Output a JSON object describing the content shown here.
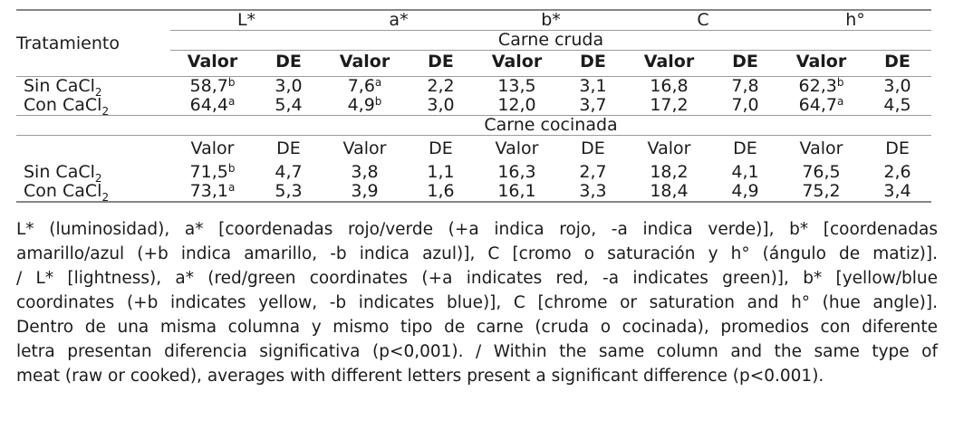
{
  "table": {
    "row_header": "Tratamiento",
    "col_groups": [
      "L*",
      "a*",
      "b*",
      "C",
      "h°"
    ],
    "value_header": "Valor",
    "sd_header": "DE",
    "sections": [
      {
        "title": "Carne cruda",
        "subheader_bold": true,
        "rows": [
          {
            "label": "Sin CaCl",
            "label_sub": "2",
            "cells": [
              {
                "v": "58,7",
                "sup": "b"
              },
              {
                "v": "3,0"
              },
              {
                "v": "7,6",
                "sup": "a"
              },
              {
                "v": "2,2"
              },
              {
                "v": "13,5"
              },
              {
                "v": "3,1"
              },
              {
                "v": "16,8"
              },
              {
                "v": "7,8"
              },
              {
                "v": "62,3",
                "sup": "b"
              },
              {
                "v": "3,0"
              }
            ]
          },
          {
            "label": "Con CaCl",
            "label_sub": "2",
            "cells": [
              {
                "v": "64,4",
                "sup": "a"
              },
              {
                "v": "5,4"
              },
              {
                "v": "4,9",
                "sup": "b"
              },
              {
                "v": "3,0"
              },
              {
                "v": "12,0"
              },
              {
                "v": "3,7"
              },
              {
                "v": "17,2"
              },
              {
                "v": "7,0"
              },
              {
                "v": "64,7",
                "sup": "a"
              },
              {
                "v": "4,5"
              }
            ]
          }
        ]
      },
      {
        "title": "Carne cocinada",
        "subheader_bold": false,
        "rows": [
          {
            "label": "Sin CaCl",
            "label_sub": "2",
            "cells": [
              {
                "v": "71,5",
                "sup": "b"
              },
              {
                "v": "4,7"
              },
              {
                "v": "3,8"
              },
              {
                "v": "1,1"
              },
              {
                "v": "16,3"
              },
              {
                "v": "2,7"
              },
              {
                "v": "18,2"
              },
              {
                "v": "4,1"
              },
              {
                "v": "76,5"
              },
              {
                "v": "2,6"
              }
            ]
          },
          {
            "label": "Con CaCl",
            "label_sub": "2",
            "cells": [
              {
                "v": "73,1",
                "sup": "a"
              },
              {
                "v": "5,3"
              },
              {
                "v": "3,9"
              },
              {
                "v": "1,6"
              },
              {
                "v": "16,1"
              },
              {
                "v": "3,3"
              },
              {
                "v": "18,4"
              },
              {
                "v": "4,9"
              },
              {
                "v": "75,2"
              },
              {
                "v": "3,4"
              }
            ]
          }
        ]
      }
    ]
  },
  "footnote": {
    "lines": [
      "L* (luminosidad), a* [coordenadas rojo/verde (+a indica rojo, -a indica verde)], b* [coordenadas",
      "amarillo/azul (+b indica amarillo, -b indica azul)], C [cromo o saturación y h° (ángulo de matiz)].",
      "/ L* [lightness), a* (red/green coordinates (+a indicates red, -a indicates green)], b* [yellow/blue",
      "coordinates (+b indicates yellow, -b indicates blue)], C [chrome or saturation and h° (hue angle)].",
      "Dentro de una misma columna y mismo tipo de carne (cruda o cocinada), promedios con diferente",
      "letra presentan diferencia significativa (p<0,001). / Within the same column and the same type of",
      "meat (raw or cooked), averages with different letters present a significant difference (p<0.001)."
    ]
  },
  "colors": {
    "background": "#ffffff",
    "text": "#1b1b1b",
    "rule_heavy": "#868686",
    "rule_light": "#9b9b9b"
  }
}
